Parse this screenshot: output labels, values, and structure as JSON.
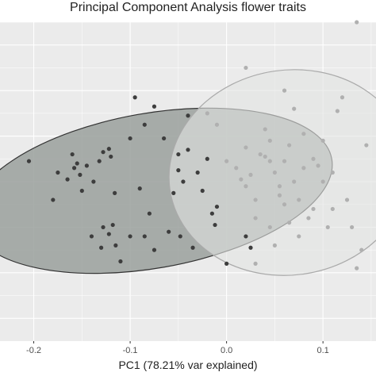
{
  "chart_data": {
    "type": "scatter",
    "title": "Principal Component Analysis flower traits",
    "xlabel": "PC1 (78.21% var explained)",
    "ylabel": "",
    "xlim": [
      -0.235,
      0.155
    ],
    "ylim": [
      -0.35,
      0.35
    ],
    "xticks": [
      -0.2,
      -0.1,
      0.0,
      0.1
    ],
    "xtick_labels": [
      "-0.2",
      "-0.1",
      "0.0",
      "0.1"
    ],
    "grid": true,
    "background": "#ebebeb",
    "series": [
      {
        "color": "#3d3d3d",
        "ellipse": {
          "cx": -0.078,
          "cy": -0.02,
          "rx": 0.19,
          "ry": 0.17,
          "angle_deg": -10,
          "fill": "#9aa09c",
          "stroke": "#333333"
        },
        "points": [
          [
            -0.205,
            0.045
          ],
          [
            -0.18,
            -0.04
          ],
          [
            -0.175,
            0.02
          ],
          [
            -0.165,
            0.005
          ],
          [
            -0.16,
            0.06
          ],
          [
            -0.158,
            0.03
          ],
          [
            -0.155,
            0.04
          ],
          [
            -0.152,
            0.015
          ],
          [
            -0.15,
            -0.02
          ],
          [
            -0.145,
            0.035
          ],
          [
            -0.138,
            0.0
          ],
          [
            -0.132,
            0.045
          ],
          [
            -0.128,
            0.065
          ],
          [
            -0.122,
            0.072
          ],
          [
            -0.12,
            0.055
          ],
          [
            -0.118,
            -0.095
          ],
          [
            -0.116,
            -0.025
          ],
          [
            -0.14,
            -0.12
          ],
          [
            -0.13,
            -0.145
          ],
          [
            -0.128,
            -0.1
          ],
          [
            -0.122,
            -0.115
          ],
          [
            -0.115,
            -0.14
          ],
          [
            -0.11,
            -0.175
          ],
          [
            -0.1,
            -0.12
          ],
          [
            -0.1,
            0.095
          ],
          [
            -0.09,
            -0.015
          ],
          [
            -0.085,
            -0.12
          ],
          [
            -0.08,
            -0.07
          ],
          [
            -0.075,
            -0.15
          ],
          [
            -0.06,
            -0.11
          ],
          [
            -0.055,
            -0.025
          ],
          [
            -0.05,
            0.025
          ],
          [
            -0.045,
            0.0
          ],
          [
            -0.048,
            -0.12
          ],
          [
            -0.04,
            0.145
          ],
          [
            -0.035,
            -0.145
          ],
          [
            -0.025,
            -0.02
          ],
          [
            -0.015,
            -0.07
          ],
          [
            -0.012,
            -0.095
          ],
          [
            0.0,
            -0.18
          ],
          [
            -0.085,
            0.125
          ],
          [
            -0.075,
            0.165
          ],
          [
            -0.065,
            0.095
          ],
          [
            -0.04,
            0.07
          ],
          [
            -0.03,
            0.02
          ],
          [
            -0.02,
            0.05
          ],
          [
            -0.01,
            -0.055
          ],
          [
            0.02,
            -0.12
          ],
          [
            0.025,
            -0.145
          ],
          [
            -0.095,
            0.185
          ],
          [
            -0.05,
            0.06
          ]
        ]
      },
      {
        "color": "#b0b0b0",
        "ellipse": {
          "cx": 0.065,
          "cy": 0.02,
          "rx": 0.125,
          "ry": 0.225,
          "angle_deg": -8,
          "fill": "#e3e5e3",
          "stroke": "#aaaaaa"
        },
        "points": [
          [
            0.135,
            0.35
          ],
          [
            0.02,
            0.25
          ],
          [
            -0.02,
            0.15
          ],
          [
            -0.01,
            0.125
          ],
          [
            0.0,
            0.045
          ],
          [
            0.01,
            0.03
          ],
          [
            0.015,
            0.005
          ],
          [
            0.02,
            -0.01
          ],
          [
            0.025,
            0.015
          ],
          [
            0.03,
            -0.04
          ],
          [
            0.035,
            0.06
          ],
          [
            0.04,
            0.055
          ],
          [
            0.045,
            0.045
          ],
          [
            0.05,
            0.02
          ],
          [
            0.055,
            -0.03
          ],
          [
            0.06,
            0.045
          ],
          [
            0.065,
            0.08
          ],
          [
            0.07,
            0.0
          ],
          [
            0.075,
            -0.04
          ],
          [
            0.08,
            0.03
          ],
          [
            0.085,
            -0.08
          ],
          [
            0.09,
            0.05
          ],
          [
            0.095,
            0.035
          ],
          [
            0.1,
            0.0
          ],
          [
            0.11,
            0.02
          ],
          [
            0.115,
            0.155
          ],
          [
            0.12,
            0.185
          ],
          [
            0.125,
            -0.04
          ],
          [
            0.13,
            -0.1
          ],
          [
            0.135,
            -0.19
          ],
          [
            0.14,
            -0.15
          ],
          [
            0.145,
            0.08
          ],
          [
            0.06,
            0.2
          ],
          [
            0.07,
            0.16
          ],
          [
            0.08,
            0.105
          ],
          [
            0.04,
            0.115
          ],
          [
            0.03,
            -0.08
          ],
          [
            0.045,
            -0.1
          ],
          [
            0.05,
            -0.14
          ],
          [
            0.065,
            -0.09
          ],
          [
            0.075,
            -0.12
          ],
          [
            0.09,
            -0.06
          ],
          [
            0.105,
            -0.1
          ],
          [
            0.045,
            0.09
          ],
          [
            0.03,
            -0.18
          ],
          [
            0.055,
            -0.01
          ],
          [
            0.02,
            0.075
          ],
          [
            0.1,
            0.09
          ],
          [
            0.11,
            -0.06
          ],
          [
            0.06,
            -0.05
          ]
        ]
      }
    ]
  }
}
